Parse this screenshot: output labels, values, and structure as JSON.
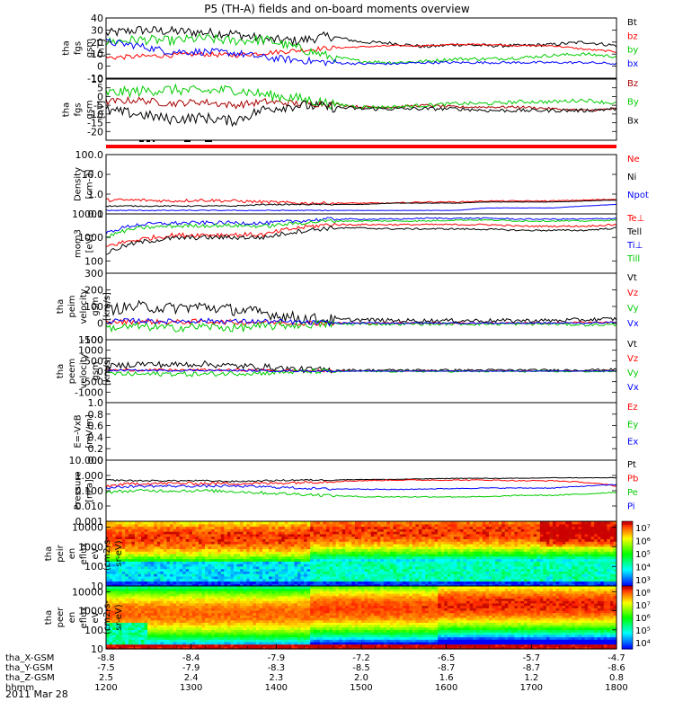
{
  "title": "P5 (TH-A) fields and on-board moments overview",
  "date_label": "2011 Mar 28",
  "chart_data": [
    {
      "type": "line",
      "title": "tha fgs gsm [nT]",
      "ylabel": [
        "tha",
        "fgs",
        "gsm",
        "[nT]"
      ],
      "ylim": [
        -10,
        40
      ],
      "yticks": [
        "40",
        "30",
        "20",
        "10",
        "0",
        "-10"
      ],
      "series": [
        {
          "name": "Bt",
          "color": "#000000",
          "base": [
            27,
            30,
            29,
            28,
            27,
            22,
            21,
            25,
            20,
            19,
            16,
            18,
            17,
            17,
            18,
            20,
            17
          ],
          "noise": 4
        },
        {
          "name": "bz",
          "color": "#ff0000",
          "base": [
            7,
            8,
            9,
            10,
            9,
            11,
            13,
            15,
            16,
            17,
            17,
            18,
            18,
            17,
            17,
            14,
            12
          ],
          "noise": 2
        },
        {
          "name": "by",
          "color": "#00cc00",
          "base": [
            20,
            22,
            21,
            23,
            21,
            22,
            15,
            8,
            4,
            3,
            4,
            6,
            6,
            7,
            9,
            10,
            8
          ],
          "noise": 4
        },
        {
          "name": "bx",
          "color": "#0000ff",
          "base": [
            20,
            17,
            12,
            12,
            11,
            7,
            5,
            3,
            2,
            2,
            3,
            3,
            3,
            3,
            3,
            3,
            2
          ],
          "noise": 3
        }
      ]
    },
    {
      "type": "line",
      "title": "tha fgs gsm [nT]",
      "ylabel": [
        "tha",
        "fgs",
        "gsm",
        "[nT]"
      ],
      "ylim": [
        -25,
        10
      ],
      "yticks": [
        "10",
        "5",
        "0",
        "-5",
        "-10",
        "-15",
        "-20"
      ],
      "series": [
        {
          "name": "Bz",
          "color": "#aa0000",
          "base": [
            -3,
            -2,
            -4,
            -3,
            -5,
            -3,
            -4,
            -4,
            -6,
            -6,
            -5,
            -6,
            -6,
            -6,
            -7,
            -8,
            -7
          ],
          "noise": 2
        },
        {
          "name": "By",
          "color": "#00cc00",
          "base": [
            2,
            3,
            4,
            3,
            4,
            1,
            -1,
            -4,
            -6,
            -6,
            -5,
            -4,
            -4,
            -3,
            -3,
            -2,
            -4
          ],
          "noise": 3
        },
        {
          "name": "Bx",
          "color": "#000000",
          "base": [
            -8,
            -10,
            -13,
            -12,
            -14,
            -7,
            -5,
            -6,
            -7,
            -7,
            -7,
            -7,
            -8,
            -8,
            -8,
            -8,
            -7
          ],
          "noise": 3
        }
      ]
    },
    {
      "type": "line",
      "title": "Density [cm-3]",
      "ylabel": [
        "Density",
        "[cm-3]"
      ],
      "scale": "log",
      "ylim": [
        0.1,
        100
      ],
      "yticks": [
        "100.0",
        "10.0",
        "1.0",
        "0.1"
      ],
      "series": [
        {
          "name": "Ne",
          "color": "#ff0000",
          "base": [
            0.5,
            0.5,
            0.45,
            0.5,
            0.45,
            0.4,
            0.35,
            0.35,
            0.35,
            0.35,
            0.4,
            0.4,
            0.45,
            0.45,
            0.45,
            0.5,
            0.55
          ],
          "noise": 0.08
        },
        {
          "name": "Ni",
          "color": "#000000",
          "base": [
            0.25,
            0.25,
            0.25,
            0.25,
            0.25,
            0.3,
            0.3,
            0.3,
            0.3,
            0.35,
            0.35,
            0.35,
            0.4,
            0.4,
            0.4,
            0.45,
            0.5
          ],
          "noise": 0.03
        },
        {
          "name": "Npot",
          "color": "#0000ff",
          "base": [
            0.15,
            0.15,
            0.15,
            0.15,
            0.15,
            0.15,
            0.15,
            0.15,
            0.15,
            0.15,
            0.15,
            0.15,
            0.2,
            0.2,
            0.2,
            0.25,
            0.3
          ],
          "noise": 0.02
        }
      ]
    },
    {
      "type": "line",
      "title": "mom3 [eV]",
      "ylabel": [
        "mom3",
        "[eV]"
      ],
      "scale": "log",
      "ylim": [
        30,
        10000
      ],
      "yticks": [
        "10000",
        "1000",
        "100"
      ],
      "series": [
        {
          "name": "Te⊥",
          "color": "#ff0000",
          "base": [
            400,
            800,
            1200,
            1300,
            1300,
            1300,
            2500,
            3500,
            3500,
            3500,
            3500,
            3500,
            3500,
            3000,
            3000,
            3000,
            3500
          ],
          "noise": 0.1
        },
        {
          "name": "Tell",
          "color": "#000000",
          "base": [
            200,
            600,
            900,
            1000,
            1000,
            1000,
            1800,
            2500,
            2500,
            2300,
            2300,
            2300,
            2200,
            2000,
            2000,
            2000,
            2500
          ],
          "noise": 0.1
        },
        {
          "name": "Ti⊥",
          "color": "#0000ff",
          "base": [
            1500,
            3500,
            4000,
            4200,
            4200,
            4000,
            5000,
            6000,
            6000,
            6000,
            6500,
            6500,
            6500,
            6000,
            6000,
            6000,
            6500
          ],
          "noise": 0.08
        },
        {
          "name": "Till",
          "color": "#00cc00",
          "base": [
            1000,
            2500,
            3000,
            3200,
            3200,
            3000,
            4000,
            5000,
            5000,
            5000,
            5000,
            5500,
            5500,
            5000,
            5000,
            5000,
            5500
          ],
          "noise": 0.08
        }
      ]
    },
    {
      "type": "line",
      "title": "tha peim velocity gsm [km/s]",
      "ylabel": [
        "tha",
        "peim",
        "velocity",
        "gsm",
        "[km/s]"
      ],
      "ylim": [
        -100,
        300
      ],
      "yticks": [
        "300",
        "200",
        "100",
        "0",
        "-100"
      ],
      "series": [
        {
          "name": "Vt",
          "color": "#000000",
          "base": [
            80,
            100,
            90,
            100,
            80,
            60,
            30,
            20,
            20,
            15,
            15,
            15,
            15,
            15,
            15,
            20,
            25
          ],
          "noise": 35
        },
        {
          "name": "Vz",
          "color": "#ff0000",
          "base": [
            5,
            10,
            5,
            10,
            5,
            5,
            0,
            0,
            0,
            0,
            0,
            0,
            0,
            0,
            0,
            5,
            5
          ],
          "noise": 15
        },
        {
          "name": "Vy",
          "color": "#00cc00",
          "base": [
            -30,
            -20,
            -30,
            -20,
            -30,
            -20,
            -10,
            -5,
            -5,
            -5,
            -5,
            -5,
            -5,
            -5,
            -5,
            -10,
            -10
          ],
          "noise": 25
        },
        {
          "name": "Vx",
          "color": "#0000ff",
          "base": [
            10,
            15,
            10,
            15,
            10,
            10,
            5,
            0,
            0,
            0,
            0,
            0,
            0,
            0,
            0,
            0,
            5
          ],
          "noise": 15
        }
      ]
    },
    {
      "type": "line",
      "title": "tha peem velocity gsm [km/s]",
      "ylabel": [
        "tha",
        "peem",
        "velocity",
        "gsm",
        "[km/s]"
      ],
      "ylim": [
        -1500,
        1500
      ],
      "yticks": [
        "1500",
        "1000",
        "500",
        "0",
        "-500",
        "-1000"
      ],
      "series": [
        {
          "name": "Vt",
          "color": "#000000",
          "base": [
            200,
            350,
            300,
            350,
            250,
            200,
            80,
            60,
            50,
            50,
            50,
            50,
            50,
            50,
            50,
            60,
            80
          ],
          "noise": 150
        },
        {
          "name": "Vz",
          "color": "#ff0000",
          "base": [
            50,
            60,
            50,
            60,
            50,
            40,
            20,
            10,
            10,
            10,
            10,
            10,
            10,
            10,
            10,
            10,
            15
          ],
          "noise": 60
        },
        {
          "name": "Vy",
          "color": "#00cc00",
          "base": [
            -100,
            -150,
            -120,
            -150,
            -100,
            -80,
            -20,
            -10,
            -10,
            -10,
            -10,
            -10,
            -10,
            -10,
            -10,
            -10,
            -15
          ],
          "noise": 120
        },
        {
          "name": "Vx",
          "color": "#0000ff",
          "base": [
            30,
            40,
            30,
            40,
            30,
            20,
            10,
            5,
            5,
            5,
            5,
            5,
            5,
            5,
            5,
            5,
            5
          ],
          "noise": 40
        }
      ]
    },
    {
      "type": "line",
      "title": "E=-VxB [mV/m]",
      "ylabel": [
        "E=-VxB",
        "[mV/m]"
      ],
      "ylim": [
        0,
        1
      ],
      "yticks": [
        "1.0",
        "0.8",
        "0.6",
        "0.4",
        "0.2",
        "0.0"
      ],
      "series": [
        {
          "name": "Ez",
          "color": "#ff0000"
        },
        {
          "name": "Ey",
          "color": "#00cc00"
        },
        {
          "name": "Ex",
          "color": "#0000ff"
        }
      ]
    },
    {
      "type": "line",
      "title": "Pressure [nPa]",
      "ylabel": [
        "Pressure",
        "[nPa]"
      ],
      "scale": "log",
      "ylim": [
        0.001,
        10
      ],
      "yticks": [
        "10.000",
        "1.000",
        "0.100",
        "0.010",
        "0.001"
      ],
      "series": [
        {
          "name": "Pt",
          "color": "#000000",
          "base": [
            0.5,
            0.45,
            0.45,
            0.45,
            0.4,
            0.45,
            0.5,
            0.5,
            0.55,
            0.55,
            0.6,
            0.65,
            0.65,
            0.65,
            0.7,
            0.7,
            0.7
          ],
          "noise": 0.05
        },
        {
          "name": "Pb",
          "color": "#ff0000",
          "base": [
            0.2,
            0.3,
            0.3,
            0.3,
            0.3,
            0.3,
            0.35,
            0.4,
            0.45,
            0.5,
            0.5,
            0.5,
            0.5,
            0.45,
            0.45,
            0.35,
            0.2
          ],
          "noise": 0.1
        },
        {
          "name": "Pe",
          "color": "#00cc00",
          "base": [
            0.08,
            0.1,
            0.1,
            0.1,
            0.09,
            0.07,
            0.06,
            0.05,
            0.04,
            0.04,
            0.04,
            0.04,
            0.04,
            0.05,
            0.05,
            0.06,
            0.08
          ],
          "noise": 0.1
        },
        {
          "name": "Pi",
          "color": "#0000ff",
          "base": [
            0.15,
            0.2,
            0.2,
            0.2,
            0.2,
            0.18,
            0.15,
            0.13,
            0.13,
            0.12,
            0.13,
            0.14,
            0.15,
            0.15,
            0.15,
            0.2,
            0.25
          ],
          "noise": 0.08
        }
      ]
    },
    {
      "type": "heatmap",
      "title": "tha peir en eflux eV/(cm2-s-sr-eV)",
      "ylabel": [
        "tha",
        "peir",
        "en",
        "eflux",
        "eV",
        "(cm2-s-",
        "sr-eV)"
      ],
      "scale": "log",
      "ylim": [
        10,
        20000
      ],
      "yticks": [
        "10000",
        "1000",
        "100",
        "10"
      ],
      "colorbar": {
        "min_exp": 3,
        "max_exp": 7,
        "labels": [
          "10⁷",
          "10⁶",
          "10⁵",
          "10⁴",
          "10³"
        ]
      }
    },
    {
      "type": "heatmap",
      "title": "tha peer en eflux eV/(cm2-s-sr-eV)",
      "ylabel": [
        "tha",
        "peer",
        "en",
        "eflux",
        "eV",
        "(cm2-s-",
        "sr-eV)"
      ],
      "scale": "log",
      "ylim": [
        10,
        20000
      ],
      "yticks": [
        "10000",
        "1000",
        "100",
        "10"
      ],
      "colorbar": {
        "min_exp": 3,
        "max_exp": 8,
        "labels": [
          "10⁸",
          "10⁷",
          "10⁶",
          "10⁵",
          "10⁴"
        ]
      }
    }
  ],
  "time_axis": {
    "labels": [
      "1200",
      "1300",
      "1400",
      "1500",
      "1600",
      "1700",
      "1800"
    ],
    "rows": [
      {
        "label": "tha_X-GSM",
        "values": [
          "-8.8",
          "-8.4",
          "-7.9",
          "-7.2",
          "-6.5",
          "-5.7",
          "-4.7"
        ]
      },
      {
        "label": "tha_Y-GSM",
        "values": [
          "-7.5",
          "-7.9",
          "-8.3",
          "-8.5",
          "-8.7",
          "-8.7",
          "-8.6"
        ]
      },
      {
        "label": "tha_Z-GSM",
        "values": [
          "2.5",
          "2.4",
          "2.3",
          "2.0",
          "1.6",
          "1.2",
          "0.8"
        ]
      },
      {
        "label": "hhmm",
        "values": []
      }
    ]
  }
}
